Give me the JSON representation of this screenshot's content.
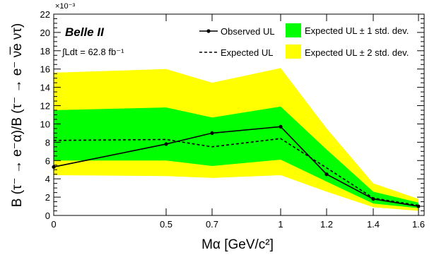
{
  "chart_data": {
    "type": "line",
    "title": "",
    "annotation_title": "Belle II",
    "annotation_lumi": "∫Ldt = 62.8 fb⁻¹",
    "xlabel": "Mα [GeV/c²]",
    "ylabel": "B (τ⁻ → e⁻α)/B (τ⁻ → e⁻ ν̅e ντ)",
    "y_exponent_label": "×10⁻³",
    "x_tick_labels": [
      "0",
      "0.5",
      "0.7",
      "1",
      "1.2",
      "1.4",
      "1.6"
    ],
    "y_ticks": [
      0,
      2,
      4,
      6,
      8,
      10,
      12,
      14,
      16,
      18,
      20,
      22
    ],
    "ylim": [
      0,
      22
    ],
    "grid": false,
    "legend_position": "top",
    "series": [
      {
        "name": "Observed UL",
        "style": "solid-with-markers",
        "color": "#000000",
        "values": [
          5.3,
          7.8,
          9.0,
          9.7,
          4.5,
          1.8,
          1.0
        ]
      },
      {
        "name": "Expected UL",
        "style": "dashed",
        "color": "#000000",
        "values": [
          8.2,
          8.3,
          7.5,
          8.4,
          5.2,
          1.9,
          1.1
        ]
      }
    ],
    "bands": [
      {
        "name": "Expected UL ± 2 std. dev.",
        "color": "#ffff00",
        "lower": [
          4.4,
          4.3,
          4.1,
          4.4,
          2.6,
          0.9,
          0.5
        ],
        "upper": [
          15.6,
          16.0,
          14.5,
          16.1,
          9.5,
          3.5,
          1.8
        ]
      },
      {
        "name": "Expected UL ± 1 std. dev.",
        "color": "#00ff00",
        "lower": [
          6.0,
          6.0,
          5.4,
          6.1,
          3.7,
          1.3,
          0.8
        ],
        "upper": [
          11.5,
          11.8,
          10.7,
          11.9,
          7.2,
          2.6,
          1.4
        ]
      }
    ]
  }
}
